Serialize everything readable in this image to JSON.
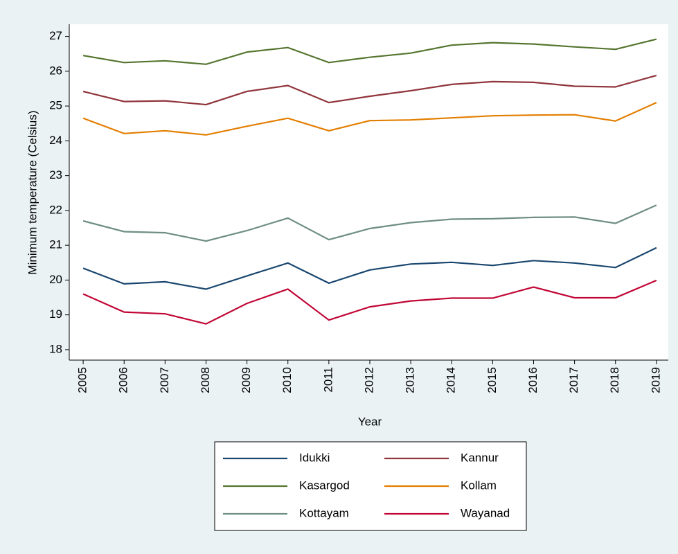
{
  "chart_data": {
    "type": "line",
    "x": [
      2005,
      2006,
      2007,
      2008,
      2009,
      2010,
      2011,
      2012,
      2013,
      2014,
      2015,
      2016,
      2017,
      2018,
      2019
    ],
    "xlabel": "Year",
    "ylabel": "Minimum temperature (Celsius)",
    "xlim": [
      2004.66,
      2019.29
    ],
    "xticks": [
      2005,
      2006,
      2007,
      2008,
      2009,
      2010,
      2011,
      2012,
      2013,
      2014,
      2015,
      2016,
      2017,
      2018,
      2019
    ],
    "ylim": [
      17.7,
      27.35
    ],
    "yticks": [
      18,
      19,
      20,
      21,
      22,
      23,
      24,
      25,
      26,
      27
    ],
    "legend": "bottom",
    "series": [
      {
        "name": "Idukki",
        "color": "#1a476f",
        "values": [
          20.34,
          19.89,
          19.95,
          19.74,
          20.12,
          20.49,
          19.91,
          20.29,
          20.46,
          20.51,
          20.42,
          20.56,
          20.49,
          20.36,
          20.93
        ]
      },
      {
        "name": "Kannur",
        "color": "#90353b",
        "values": [
          25.42,
          25.13,
          25.15,
          25.04,
          25.42,
          25.59,
          25.1,
          25.28,
          25.44,
          25.62,
          25.7,
          25.68,
          25.57,
          25.55,
          25.88
        ]
      },
      {
        "name": "Kasargod",
        "color": "#55752f",
        "values": [
          26.45,
          26.25,
          26.3,
          26.2,
          26.55,
          26.68,
          26.25,
          26.4,
          26.52,
          26.75,
          26.82,
          26.78,
          26.7,
          26.63,
          26.92
        ]
      },
      {
        "name": "Kollam",
        "color": "#e37e00",
        "values": [
          24.65,
          24.21,
          24.29,
          24.17,
          24.42,
          24.65,
          24.29,
          24.58,
          24.6,
          24.66,
          24.72,
          24.74,
          24.75,
          24.57,
          25.1
        ]
      },
      {
        "name": "Kottayam",
        "color": "#6e8e84",
        "values": [
          21.7,
          21.39,
          21.36,
          21.12,
          21.42,
          21.78,
          21.16,
          21.48,
          21.65,
          21.75,
          21.76,
          21.8,
          21.81,
          21.63,
          22.15
        ]
      },
      {
        "name": "Wayanad",
        "color": "#c10534",
        "values": [
          19.6,
          19.08,
          19.03,
          18.74,
          19.33,
          19.74,
          18.85,
          19.23,
          19.4,
          19.48,
          19.48,
          19.8,
          19.49,
          19.49,
          19.99
        ]
      }
    ]
  }
}
